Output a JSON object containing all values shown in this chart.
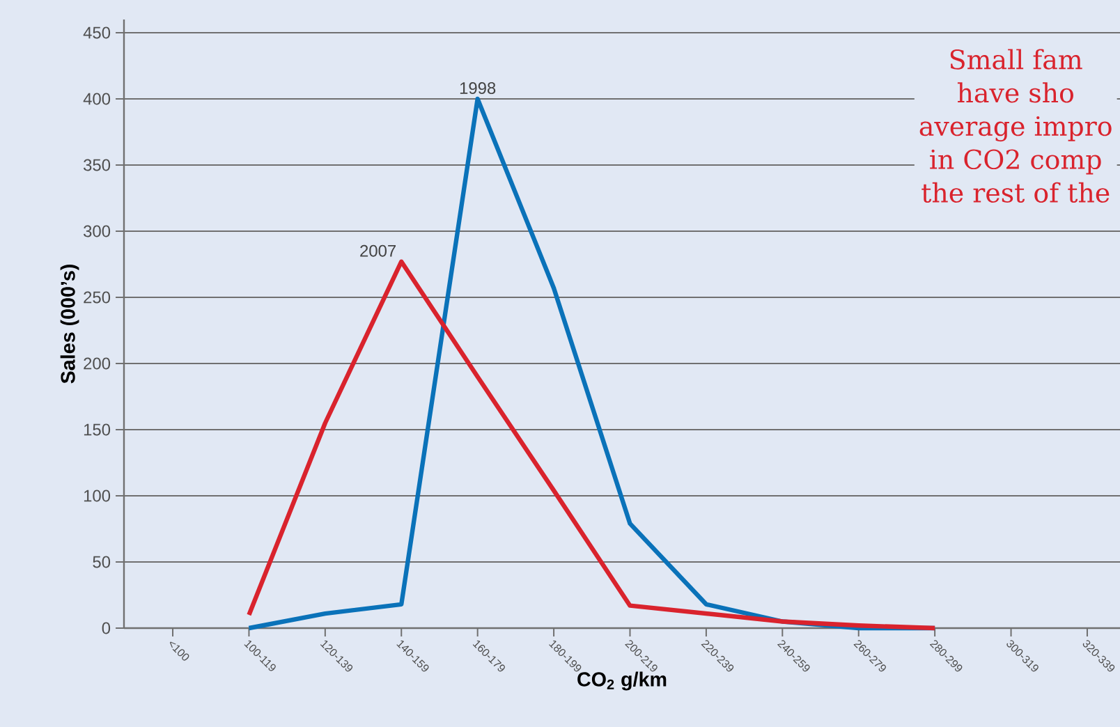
{
  "chart_data": {
    "type": "line",
    "categories": [
      "<100",
      "100-119",
      "120-139",
      "140-159",
      "160-179",
      "180-199",
      "200-219",
      "220-239",
      "240-259",
      "260-279",
      "280-299",
      "300-319",
      "320-339"
    ],
    "xlabel": "CO$_{2}$ g/km",
    "ylabel": "Sales (000’s)",
    "ylim": [
      0,
      460
    ],
    "yticks": [
      0,
      50,
      100,
      150,
      200,
      250,
      300,
      350,
      400,
      450
    ],
    "grid": "y",
    "series": [
      {
        "name": "1998",
        "color": "#0a72b9",
        "values": [
          null,
          0,
          11,
          18,
          400,
          257,
          79,
          18,
          5,
          0,
          0,
          null,
          null
        ]
      },
      {
        "name": "2007",
        "color": "#d9232d",
        "values": [
          null,
          10,
          155,
          277,
          190,
          104,
          17,
          11,
          5,
          2,
          0,
          null,
          null
        ]
      }
    ],
    "annotations": [
      "Small fam",
      "have sho",
      "average impro",
      "in CO2 comp",
      "the rest of the"
    ]
  }
}
